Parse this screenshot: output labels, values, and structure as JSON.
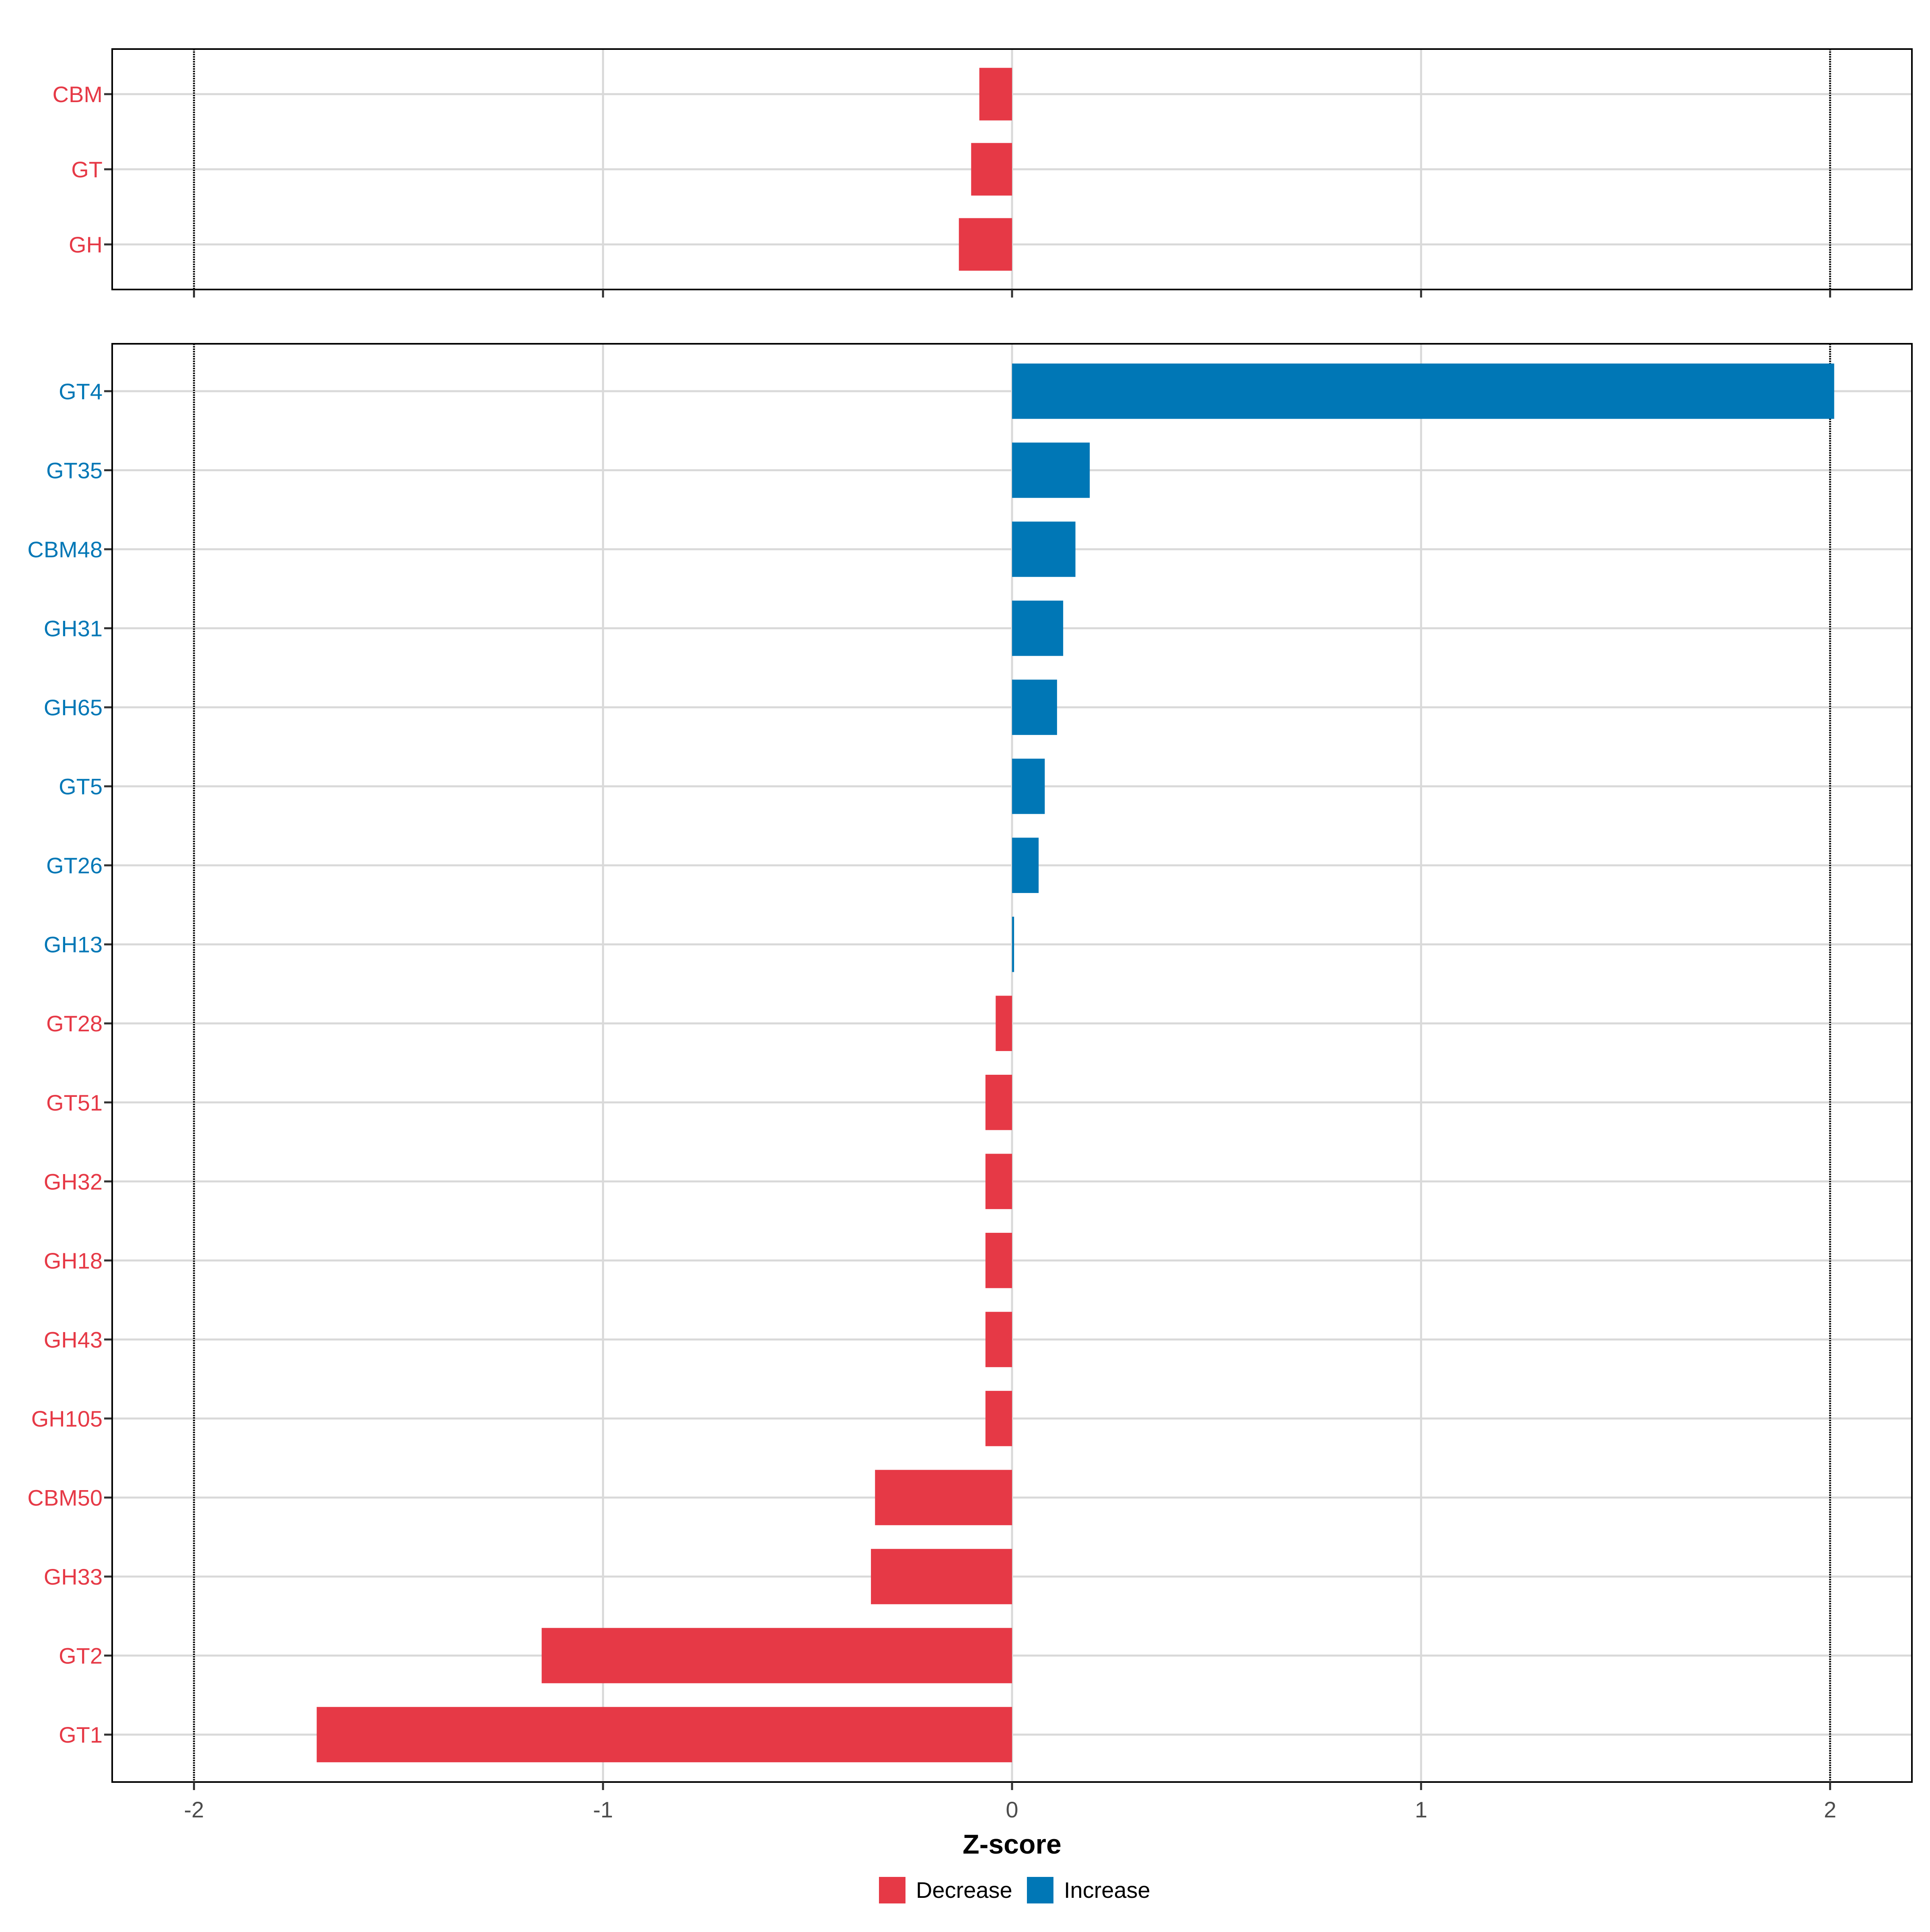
{
  "colors": {
    "decrease": "#E63946",
    "increase": "#0077B6",
    "grid": "#D9D9D9",
    "axis": "#000000",
    "tick_label": "#4D4D4D"
  },
  "chart_data": [
    {
      "type": "bar",
      "orientation": "horizontal",
      "panel": "top",
      "categories": [
        "CBM",
        "GT",
        "GH"
      ],
      "values": [
        -0.08,
        -0.1,
        -0.13
      ],
      "direction": [
        "Decrease",
        "Decrease",
        "Decrease"
      ],
      "xlim": [
        -2.2,
        2.2
      ],
      "reference_lines": [
        -2,
        2
      ],
      "grid": true
    },
    {
      "type": "bar",
      "orientation": "horizontal",
      "panel": "bottom",
      "categories": [
        "GT4",
        "GT35",
        "CBM48",
        "GH31",
        "GH65",
        "GT5",
        "GT26",
        "GH13",
        "GT28",
        "GT51",
        "GH32",
        "GH18",
        "GH43",
        "GH105",
        "CBM50",
        "GH33",
        "GT2",
        "GT1"
      ],
      "values": [
        2.01,
        0.19,
        0.155,
        0.125,
        0.11,
        0.08,
        0.065,
        0.005,
        -0.04,
        -0.065,
        -0.065,
        -0.065,
        -0.065,
        -0.065,
        -0.335,
        -0.345,
        -1.15,
        -1.7
      ],
      "direction": [
        "Increase",
        "Increase",
        "Increase",
        "Increase",
        "Increase",
        "Increase",
        "Increase",
        "Increase",
        "Decrease",
        "Decrease",
        "Decrease",
        "Decrease",
        "Decrease",
        "Decrease",
        "Decrease",
        "Decrease",
        "Decrease",
        "Decrease"
      ],
      "xlim": [
        -2.2,
        2.2
      ],
      "x_ticks": [
        "-2",
        "-1",
        "0",
        "1",
        "2"
      ],
      "x_tick_values": [
        -2,
        -1,
        0,
        1,
        2
      ],
      "xlabel": "Z-score",
      "reference_lines": [
        -2,
        2
      ],
      "grid": true
    }
  ],
  "legend": {
    "position": "bottom",
    "items": [
      {
        "label": "Decrease",
        "key": "decrease"
      },
      {
        "label": "Increase",
        "key": "increase"
      }
    ]
  }
}
